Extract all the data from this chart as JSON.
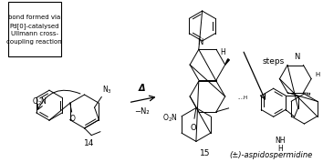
{
  "bg_color": "#ffffff",
  "box_text": "bond formed via\nPd[0]-catalysed\nUllmann cross-\ncoupling reaction",
  "label_14": "14",
  "label_15": "15",
  "label_aspido": "(±)-aspidospermidine",
  "label_steps": "steps",
  "label_delta": "Δ",
  "label_minusN2": "−N₂",
  "label_N3": "N₃",
  "figsize": [
    3.54,
    1.78
  ],
  "dpi": 100
}
